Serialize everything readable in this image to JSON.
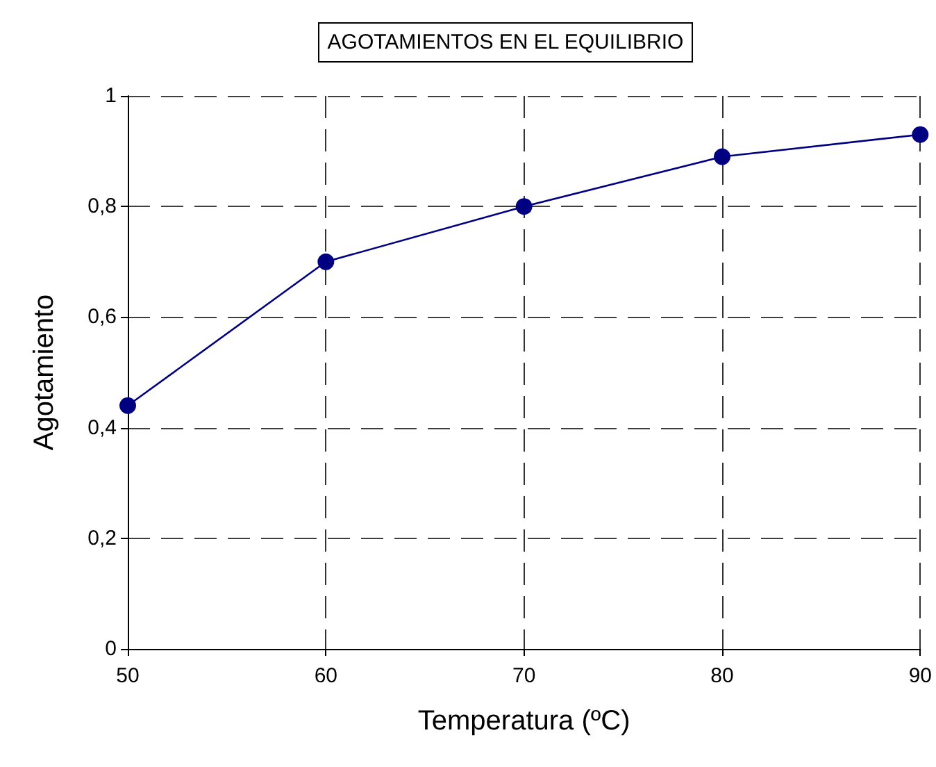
{
  "chart_data": {
    "type": "line",
    "title": "AGOTAMIENTOS EN EL EQUILIBRIO",
    "xlabel": "Temperatura (ºC)",
    "ylabel": "Agotamiento",
    "x": [
      50,
      60,
      70,
      80,
      90
    ],
    "series": [
      {
        "color": "#000080",
        "values": [
          0.44,
          0.7,
          0.8,
          0.89,
          0.93
        ]
      }
    ],
    "xlim": [
      50,
      90
    ],
    "xticks": [
      50,
      60,
      70,
      80,
      90
    ],
    "ylim": [
      0,
      1
    ],
    "yticks": [
      0,
      {
        "value": 0.2,
        "label": "0,2"
      },
      {
        "value": 0.4,
        "label": "0,4"
      },
      {
        "value": 0.6,
        "label": "0,6"
      },
      {
        "value": 0.8,
        "label": "0,8"
      },
      1
    ],
    "grid": true,
    "marker": "circle",
    "line_style": "solid"
  }
}
